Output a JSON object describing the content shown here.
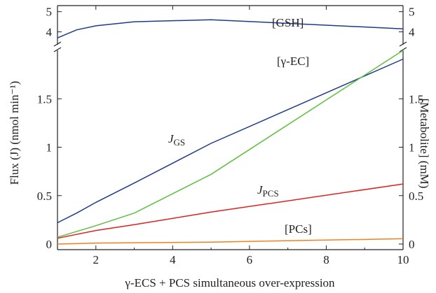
{
  "chart_data": {
    "type": "line",
    "xlabel": "γ-ECS + PCS simultaneous over-expression",
    "ylabel_left": "Flux (J) (nmol min⁻¹)",
    "ylabel_right": "[Metabolite] (mM)",
    "xlim": [
      1,
      10
    ],
    "ylim_lower": [
      0,
      2
    ],
    "ylim_upper": [
      3.5,
      5.3
    ],
    "broken_axis": true,
    "grid": false,
    "x_ticks": [
      2,
      4,
      6,
      8,
      10
    ],
    "y_ticks_lower": [
      0,
      0.5,
      1,
      1.5
    ],
    "y_ticks_upper": [
      4,
      5
    ],
    "series": [
      {
        "name": "[GSH]",
        "color": "#1f3a8a",
        "panel": "upper",
        "x": [
          1,
          1.5,
          2,
          3,
          5,
          10
        ],
        "y": [
          3.7,
          4.1,
          4.3,
          4.5,
          4.6,
          4.15
        ]
      },
      {
        "name": "J_GS",
        "color": "#1f3a8a",
        "panel": "lower",
        "x": [
          1,
          1.5,
          2,
          3,
          5,
          10
        ],
        "y": [
          0.22,
          0.32,
          0.43,
          0.63,
          1.04,
          1.91
        ]
      },
      {
        "name": "[γ-EC]",
        "color": "#5fbf3f",
        "panel": "lower",
        "x": [
          1,
          2,
          3,
          5,
          10
        ],
        "y": [
          0.07,
          0.19,
          0.32,
          0.72,
          2.0
        ]
      },
      {
        "name": "J_PCS",
        "color": "#e02020",
        "panel": "lower",
        "x": [
          1,
          2,
          3,
          5,
          10
        ],
        "y": [
          0.06,
          0.14,
          0.2,
          0.33,
          0.62
        ]
      },
      {
        "name": "[PCs]",
        "color": "#f08020",
        "panel": "lower",
        "x": [
          1,
          2,
          5,
          10
        ],
        "y": [
          0.0,
          0.01,
          0.02,
          0.055
        ]
      }
    ],
    "annotations": {
      "gsh": "[GSH]",
      "gec": "[γ-EC]",
      "jgs_main": "J",
      "jgs_sub": "GS",
      "jpcs_main": "J",
      "jpcs_sub": "PCS",
      "pcs": "[PCs]"
    }
  }
}
